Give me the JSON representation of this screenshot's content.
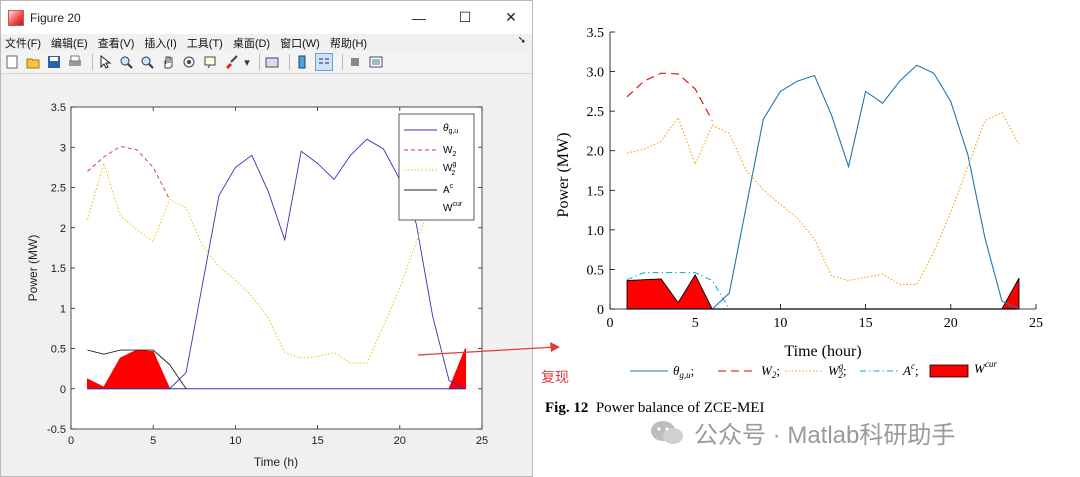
{
  "window": {
    "title": "Figure 20",
    "menu": [
      "文件(F)",
      "编辑(E)",
      "查看(V)",
      "插入(I)",
      "工具(T)",
      "桌面(D)",
      "窗口(W)",
      "帮助(H)"
    ],
    "controls": {
      "minimize": "—",
      "maximize": "☐",
      "close": "✕"
    }
  },
  "annotation_text": "复现",
  "caption": {
    "label": "Fig. 12",
    "text": "Power balance of ZCE-MEI"
  },
  "watermark": "公众号 · Matlab科研助手",
  "colors": {
    "accent_red": "#e2393b"
  },
  "chart_data": [
    {
      "type": "line",
      "xlabel": "Time (h)",
      "ylabel": "Power (MW)",
      "xlim": [
        0,
        25
      ],
      "ylim": [
        -0.5,
        3.5
      ],
      "xticks": [
        "0",
        "5",
        "10",
        "15",
        "20",
        "25"
      ],
      "yticks": [
        "-0.5",
        "0",
        "0.5",
        "1",
        "1.5",
        "2",
        "2.5",
        "3",
        "3.5"
      ],
      "legend_position": "top-right",
      "legend": [
        "θ",
        "W2",
        "W2g",
        "Ac",
        "Wcur"
      ],
      "series": [
        {
          "name": "θg,u",
          "color": "#3333b3",
          "x": [
            1,
            2,
            3,
            4,
            5,
            6,
            7,
            8,
            9,
            10,
            11,
            12,
            13,
            14,
            15,
            16,
            17,
            18,
            19,
            20,
            21,
            22,
            23,
            24
          ],
          "values": [
            0,
            0,
            0,
            0,
            0,
            0,
            0,
            0,
            0,
            0,
            0,
            0,
            0,
            0,
            0,
            0,
            0,
            0,
            0,
            0,
            0,
            0,
            0,
            0
          ]
        },
        {
          "name": "θg,u (curve)",
          "color": "#3333b3",
          "x": [
            6,
            7,
            8,
            9,
            10,
            11,
            12,
            13,
            14,
            15,
            16,
            17,
            18,
            19,
            20,
            21,
            22,
            23,
            24
          ],
          "values": [
            0,
            0.2,
            1.3,
            2.4,
            2.75,
            2.9,
            2.45,
            1.85,
            2.95,
            2.8,
            2.6,
            2.9,
            3.1,
            2.98,
            2.6,
            2.05,
            0.9,
            0.1,
            0
          ]
        },
        {
          "name": "W2",
          "color": "#d33",
          "x": [
            1,
            2,
            3,
            4,
            5,
            6
          ],
          "values": [
            2.7,
            2.88,
            3.01,
            2.97,
            2.75,
            2.35
          ]
        },
        {
          "name": "W2g",
          "color": "#e8c800",
          "x": [
            1,
            2,
            3,
            4,
            5,
            6,
            7,
            8,
            9,
            10,
            11,
            12,
            13,
            14,
            15,
            16,
            17,
            18,
            19,
            20,
            21,
            22,
            23,
            24
          ],
          "values": [
            2.1,
            2.8,
            2.15,
            1.98,
            1.83,
            2.35,
            2.25,
            1.78,
            1.52,
            1.35,
            1.15,
            0.88,
            0.45,
            0.38,
            0.4,
            0.45,
            0.32,
            0.32,
            0.78,
            1.25,
            1.82,
            2.35,
            2.5,
            2.3
          ]
        },
        {
          "name": "Ac",
          "color": "#222",
          "x": [
            1,
            2,
            3,
            4,
            5,
            6,
            7
          ],
          "values": [
            0.48,
            0.43,
            0.48,
            0.48,
            0.48,
            0.3,
            0
          ]
        },
        {
          "name": "Wcur",
          "color": "#ff0000",
          "x": [
            1,
            2,
            3,
            4,
            5,
            6,
            23,
            24
          ],
          "values": [
            0.12,
            0.02,
            0.38,
            0.48,
            0.46,
            0,
            0,
            0.5
          ]
        }
      ]
    },
    {
      "type": "area",
      "xlabel": "Time (hour)",
      "ylabel": "Power (MW)",
      "xlim": [
        0,
        25
      ],
      "ylim": [
        0,
        3.5
      ],
      "xticks": [
        "0",
        "5",
        "10",
        "15",
        "20",
        "25"
      ],
      "yticks": [
        "0",
        "0.5",
        "1.0",
        "1.5",
        "2.0",
        "2.5",
        "3.0",
        "3.5"
      ],
      "legend_position": "bottom",
      "legend": [
        "θg,u;",
        "W2;",
        "W2g;",
        "Ac;",
        "Wcur"
      ],
      "series": [
        {
          "name": "θg,u",
          "color": "#1f77b4",
          "x": [
            1,
            2,
            3,
            4,
            5,
            6,
            7,
            8,
            9,
            10,
            11,
            12,
            13,
            14,
            15,
            16,
            17,
            18,
            19,
            20,
            21,
            22,
            23,
            24
          ],
          "values": [
            0,
            0,
            0,
            0,
            0,
            0,
            0.2,
            1.3,
            2.4,
            2.75,
            2.88,
            2.95,
            2.45,
            1.8,
            2.75,
            2.6,
            2.88,
            3.08,
            2.98,
            2.62,
            1.95,
            0.9,
            0.1,
            0
          ]
        },
        {
          "name": "W2",
          "color": "#e00000",
          "x": [
            1,
            2,
            3,
            4,
            5,
            6
          ],
          "values": [
            2.68,
            2.88,
            2.98,
            2.97,
            2.78,
            2.38
          ]
        },
        {
          "name": "W2g",
          "color": "#ffa500",
          "x": [
            1,
            2,
            3,
            4,
            5,
            6,
            7,
            8,
            9,
            10,
            11,
            12,
            13,
            14,
            15,
            16,
            17,
            18,
            19,
            20,
            21,
            22,
            23,
            24
          ],
          "values": [
            1.97,
            2.02,
            2.12,
            2.42,
            1.83,
            2.32,
            2.22,
            1.75,
            1.5,
            1.32,
            1.15,
            0.88,
            0.42,
            0.36,
            0.4,
            0.44,
            0.31,
            0.31,
            0.72,
            1.22,
            1.8,
            2.38,
            2.48,
            2.08
          ]
        },
        {
          "name": "Ac",
          "color": "#00aacc",
          "x": [
            1,
            2,
            3,
            4,
            5,
            6,
            7
          ],
          "values": [
            0.37,
            0.46,
            0.46,
            0.46,
            0.46,
            0.36,
            0
          ]
        },
        {
          "name": "Wcur",
          "color": "#ff0000",
          "x": [
            1,
            2,
            3,
            4,
            5,
            6,
            23,
            24
          ],
          "values": [
            0.36,
            0.37,
            0.38,
            0.08,
            0.43,
            0,
            0,
            0.39
          ]
        }
      ]
    }
  ]
}
